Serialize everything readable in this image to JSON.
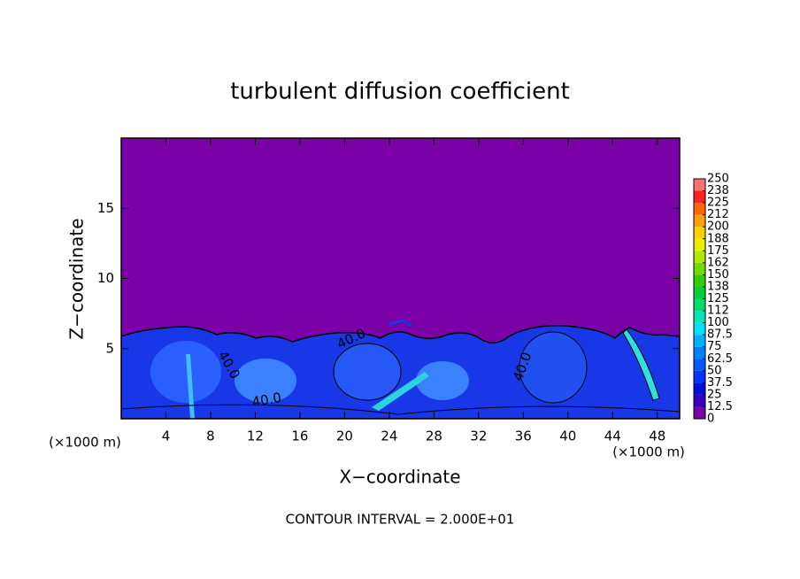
{
  "chart_data": {
    "type": "contour",
    "title": "turbulent diffusion coefficient",
    "x_label": "X−coordinate",
    "y_label": "Z−coordinate",
    "x_unit_label": "(×1000 m)",
    "y_unit_label": "(×1000 m)",
    "footer": "CONTOUR INTERVAL = 2.000E+01",
    "xlim": [
      0,
      50
    ],
    "ylim": [
      0,
      20
    ],
    "xticks": [
      4,
      8,
      12,
      16,
      20,
      24,
      28,
      32,
      36,
      40,
      44,
      48
    ],
    "yticks": [
      5,
      10,
      15
    ],
    "contour_labels": [
      "40.0",
      "40.0",
      "40.0",
      "40.0"
    ],
    "colorbar": {
      "ticks": [
        0,
        12.5,
        25,
        37.5,
        50,
        62.5,
        75,
        87.5,
        100,
        {
          "value": 112.5,
          "label": "112"
        },
        125,
        {
          "value": 137.5,
          "label": "138"
        },
        150,
        {
          "value": 162.5,
          "label": "162"
        },
        175,
        {
          "value": 187.5,
          "label": "188"
        },
        200,
        {
          "value": 212.5,
          "label": "212"
        },
        225,
        {
          "value": 237.5,
          "label": "238"
        },
        250
      ],
      "colors": [
        "#7a00a8",
        "#3a00c0",
        "#0010dc",
        "#0034ff",
        "#0058ff",
        "#0080ff",
        "#00b0ff",
        "#00e0ff",
        "#00e8b0",
        "#00dc70",
        "#00d040",
        "#30d000",
        "#70dc00",
        "#b0e800",
        "#e8f000",
        "#ffd000",
        "#ffa000",
        "#ff6800",
        "#ff2020",
        "#ff7070"
      ]
    }
  }
}
